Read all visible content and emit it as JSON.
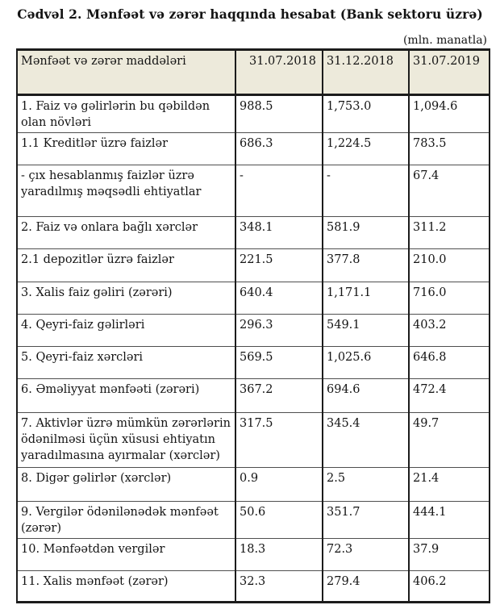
{
  "title": "Cədvəl 2. Mənfəət və zərər haqqında hesabat (Bank sektoru üzrə)",
  "unit_note": "(mln. manatla)",
  "colors": {
    "header_bg": "#edeadb",
    "border": "#1c1c1c",
    "text": "#141414",
    "page_bg": "#ffffff"
  },
  "table": {
    "columns": [
      "Mənfəət və zərər maddələri",
      "31.07.2018",
      "31.12.2018",
      "31.07.2019"
    ],
    "rows": [
      {
        "label": "1. Faiz və gəlirlərin bu qəbildən olan növləri",
        "values": [
          "988.5",
          "1,753.0",
          "1,094.6"
        ]
      },
      {
        "label": "1.1 Kreditlər üzrə faizlər",
        "values": [
          "686.3",
          "1,224.5",
          "783.5"
        ]
      },
      {
        "label": "- çıx hesablanmış faizlər üzrə yaradılmış məqsədli ehtiyatlar",
        "values": [
          "-",
          "-",
          "67.4"
        ]
      },
      {
        "label": "2. Faiz və onlara bağlı xərclər",
        "values": [
          "348.1",
          "581.9",
          "311.2"
        ]
      },
      {
        "label": "2.1 depozitlər üzrə faizlər",
        "values": [
          "221.5",
          "377.8",
          "210.0"
        ]
      },
      {
        "label": "3. Xalis faiz gəliri (zərəri)",
        "values": [
          "640.4",
          "1,171.1",
          "716.0"
        ]
      },
      {
        "label": "4. Qeyri-faiz gəlirləri",
        "values": [
          "296.3",
          "549.1",
          "403.2"
        ]
      },
      {
        "label": "5. Qeyri-faiz xərcləri",
        "values": [
          "569.5",
          "1,025.6",
          "646.8"
        ]
      },
      {
        "label": "6. Əməliyyat mənfəəti (zərəri)",
        "values": [
          "367.2",
          "694.6",
          "472.4"
        ]
      },
      {
        "label": "7. Aktivlər üzrə mümkün zərərlərin ödənilməsi üçün xüsusi ehtiyatın yaradılmasına ayırmalar (xərclər)",
        "values": [
          "317.5",
          "345.4",
          "49.7"
        ]
      },
      {
        "label": "8. Digər gəlirlər (xərclər)",
        "values": [
          "0.9",
          "2.5",
          "21.4"
        ]
      },
      {
        "label": "9. Vergilər ödənilənədək mənfəət (zərər)",
        "values": [
          "50.6",
          "351.7",
          "444.1"
        ]
      },
      {
        "label": "10. Mənfəətdən vergilər",
        "values": [
          "18.3",
          "72.3",
          "37.9"
        ]
      },
      {
        "label": "11. Xalis mənfəət (zərər)",
        "values": [
          "32.3",
          "279.4",
          "406.2"
        ]
      }
    ]
  }
}
